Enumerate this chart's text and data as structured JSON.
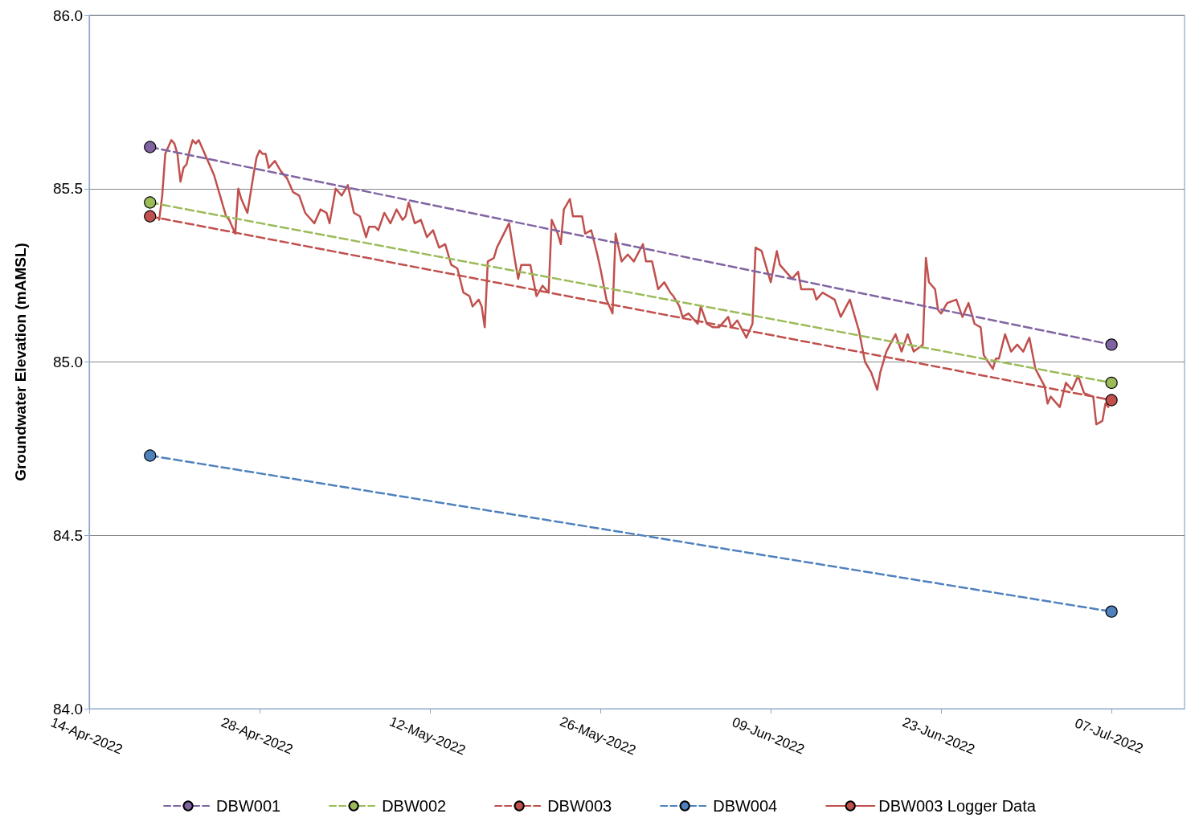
{
  "chart_data": {
    "type": "line",
    "ylabel": "Groundwater Elevation (mAMSL)",
    "ylim": [
      84,
      86
    ],
    "yticks": [
      {
        "value": 84,
        "label": "84.0"
      },
      {
        "value": 84.5,
        "label": "84.5"
      },
      {
        "value": 85,
        "label": "85.0"
      },
      {
        "value": 85.5,
        "label": "85.5"
      },
      {
        "value": 86,
        "label": "86.0"
      }
    ],
    "xlim": [
      "2022-04-14",
      "2022-07-13"
    ],
    "xticks": [
      {
        "value": "2022-04-14",
        "label": "14-Apr-2022"
      },
      {
        "value": "2022-04-28",
        "label": "28-Apr-2022"
      },
      {
        "value": "2022-05-12",
        "label": "12-May-2022"
      },
      {
        "value": "2022-05-26",
        "label": "26-May-2022"
      },
      {
        "value": "2022-06-09",
        "label": "09-Jun-2022"
      },
      {
        "value": "2022-06-23",
        "label": "23-Jun-2022"
      },
      {
        "value": "2022-07-07",
        "label": "07-Jul-2022"
      }
    ],
    "grid": "y",
    "legend": "bottom",
    "series": [
      {
        "name": "DBW001",
        "color": "#8064a2",
        "line_style": "dashed",
        "marker": "circle",
        "x": [
          "2022-04-19",
          "2022-07-07"
        ],
        "values": [
          85.62,
          85.05
        ]
      },
      {
        "name": "DBW002",
        "color": "#9bbb59",
        "line_style": "dashed",
        "marker": "circle",
        "x": [
          "2022-04-19",
          "2022-07-07"
        ],
        "values": [
          85.46,
          84.94
        ]
      },
      {
        "name": "DBW003",
        "color": "#c0504d",
        "line_style": "dashed",
        "marker": "circle",
        "x": [
          "2022-04-19",
          "2022-07-07"
        ],
        "values": [
          85.42,
          84.89
        ]
      },
      {
        "name": "DBW004",
        "color": "#4f81bd",
        "line_style": "dashed",
        "marker": "circle",
        "x": [
          "2022-04-19",
          "2022-07-07"
        ],
        "values": [
          84.73,
          84.28
        ]
      },
      {
        "name": "DBW003 Logger Data",
        "color": "#c0504d",
        "line_style": "solid",
        "marker": "none",
        "x": [
          "2022-04-19T18:00",
          "2022-04-20T00:00",
          "2022-04-20T06:00",
          "2022-04-20T18:00",
          "2022-04-21T00:00",
          "2022-04-21T06:00",
          "2022-04-21T12:00",
          "2022-04-21T18:00",
          "2022-04-22T00:00",
          "2022-04-22T06:00",
          "2022-04-22T12:00",
          "2022-04-22T18:00",
          "2022-04-23T00:00",
          "2022-04-23T06:00",
          "2022-04-23T18:00",
          "2022-04-24T06:00",
          "2022-04-24T18:00",
          "2022-04-25T00:00",
          "2022-04-25T06:00",
          "2022-04-25T12:00",
          "2022-04-26T00:00",
          "2022-04-26T06:00",
          "2022-04-26T12:00",
          "2022-04-27T00:00",
          "2022-04-27T12:00",
          "2022-04-27T18:00",
          "2022-04-28T00:00",
          "2022-04-28T06:00",
          "2022-04-28T12:00",
          "2022-04-28T18:00",
          "2022-04-29T06:00",
          "2022-04-29T18:00",
          "2022-04-30T06:00",
          "2022-04-30T18:00",
          "2022-05-01T06:00",
          "2022-05-01T18:00",
          "2022-05-02T12:00",
          "2022-05-03T00:00",
          "2022-05-03T12:00",
          "2022-05-03T18:00",
          "2022-05-04T06:00",
          "2022-05-04T18:00",
          "2022-05-05T06:00",
          "2022-05-05T18:00",
          "2022-05-06T06:00",
          "2022-05-06T18:00",
          "2022-05-07T00:00",
          "2022-05-07T12:00",
          "2022-05-07T18:00",
          "2022-05-08T06:00",
          "2022-05-08T18:00",
          "2022-05-09T06:00",
          "2022-05-09T18:00",
          "2022-05-10T00:00",
          "2022-05-10T06:00",
          "2022-05-10T18:00",
          "2022-05-11T06:00",
          "2022-05-11T18:00",
          "2022-05-12T06:00",
          "2022-05-12T18:00",
          "2022-05-13T06:00",
          "2022-05-13T18:00",
          "2022-05-14T06:00",
          "2022-05-14T18:00",
          "2022-05-15T06:00",
          "2022-05-15T12:00",
          "2022-05-16T00:00",
          "2022-05-16T06:00",
          "2022-05-16T12:00",
          "2022-05-16T18:00",
          "2022-05-17T06:00",
          "2022-05-17T12:00",
          "2022-05-18T12:00",
          "2022-05-19T00:00",
          "2022-05-19T06:00",
          "2022-05-19T12:00",
          "2022-05-20T06:00",
          "2022-05-20T18:00",
          "2022-05-21T06:00",
          "2022-05-21T18:00",
          "2022-05-22T00:00",
          "2022-05-22T06:00",
          "2022-05-22T12:00",
          "2022-05-22T18:00",
          "2022-05-23T00:00",
          "2022-05-23T12:00",
          "2022-05-23T18:00",
          "2022-05-24T12:00",
          "2022-05-24T18:00",
          "2022-05-25T06:00",
          "2022-05-25T18:00",
          "2022-05-26T00:00",
          "2022-05-26T12:00",
          "2022-05-27T00:00",
          "2022-05-27T06:00",
          "2022-05-27T18:00",
          "2022-05-28T06:00",
          "2022-05-28T18:00",
          "2022-05-29T12:00",
          "2022-05-29T18:00",
          "2022-05-30T06:00",
          "2022-05-30T18:00",
          "2022-05-31T06:00",
          "2022-05-31T18:00",
          "2022-06-01T00:00",
          "2022-06-01T12:00",
          "2022-06-01T18:00",
          "2022-06-02T06:00",
          "2022-06-03T00:00",
          "2022-06-03T06:00",
          "2022-06-03T18:00",
          "2022-06-04T06:00",
          "2022-06-04T18:00",
          "2022-06-05T12:00",
          "2022-06-05T18:00",
          "2022-06-06T06:00",
          "2022-06-07T00:00",
          "2022-06-07T12:00",
          "2022-06-07T18:00",
          "2022-06-08T06:00",
          "2022-06-08T18:00",
          "2022-06-09T00:00",
          "2022-06-09T12:00",
          "2022-06-09T18:00",
          "2022-06-10T18:00",
          "2022-06-11T06:00",
          "2022-06-11T12:00",
          "2022-06-12T12:00",
          "2022-06-12T18:00",
          "2022-06-13T06:00",
          "2022-06-14T06:00",
          "2022-06-14T18:00",
          "2022-06-15T12:00",
          "2022-06-16T06:00",
          "2022-06-16T18:00",
          "2022-06-17T06:00",
          "2022-06-17T18:00",
          "2022-06-18T00:00",
          "2022-06-18T12:00",
          "2022-06-19T06:00",
          "2022-06-19T18:00",
          "2022-06-20T06:00",
          "2022-06-20T18:00",
          "2022-06-21T12:00",
          "2022-06-21T18:00",
          "2022-06-22T00:00",
          "2022-06-22T12:00",
          "2022-06-22T18:00",
          "2022-06-23T00:00",
          "2022-06-23T12:00",
          "2022-06-24T06:00",
          "2022-06-24T18:00",
          "2022-06-25T06:00",
          "2022-06-25T18:00",
          "2022-06-26T06:00",
          "2022-06-26T12:00",
          "2022-06-27T06:00",
          "2022-06-27T12:00",
          "2022-06-27T18:00",
          "2022-06-28T06:00",
          "2022-06-28T18:00",
          "2022-06-29T06:00",
          "2022-06-29T18:00",
          "2022-06-30T06:00",
          "2022-06-30T18:00",
          "2022-07-01T12:00",
          "2022-07-01T18:00",
          "2022-07-02T00:00",
          "2022-07-02T18:00",
          "2022-07-03T06:00",
          "2022-07-03T18:00",
          "2022-07-04T06:00",
          "2022-07-04T18:00",
          "2022-07-05T12:00",
          "2022-07-05T18:00",
          "2022-07-06T06:00",
          "2022-07-06T12:00",
          "2022-07-06T18:00"
        ],
        "values": [
          85.41,
          85.48,
          85.6,
          85.64,
          85.63,
          85.6,
          85.52,
          85.56,
          85.57,
          85.61,
          85.64,
          85.63,
          85.64,
          85.62,
          85.58,
          85.54,
          85.48,
          85.45,
          85.42,
          85.41,
          85.37,
          85.5,
          85.47,
          85.43,
          85.54,
          85.59,
          85.61,
          85.6,
          85.6,
          85.56,
          85.58,
          85.55,
          85.53,
          85.49,
          85.48,
          85.43,
          85.4,
          85.44,
          85.43,
          85.4,
          85.5,
          85.48,
          85.51,
          85.43,
          85.42,
          85.36,
          85.39,
          85.39,
          85.38,
          85.43,
          85.4,
          85.44,
          85.41,
          85.42,
          85.46,
          85.4,
          85.41,
          85.36,
          85.38,
          85.33,
          85.34,
          85.28,
          85.27,
          85.2,
          85.19,
          85.16,
          85.18,
          85.16,
          85.1,
          85.29,
          85.3,
          85.33,
          85.4,
          85.29,
          85.24,
          85.28,
          85.28,
          85.19,
          85.22,
          85.2,
          85.41,
          85.39,
          85.37,
          85.34,
          85.44,
          85.47,
          85.42,
          85.42,
          85.37,
          85.38,
          85.31,
          85.27,
          85.18,
          85.14,
          85.37,
          85.29,
          85.31,
          85.29,
          85.34,
          85.29,
          85.29,
          85.21,
          85.23,
          85.2,
          85.19,
          85.16,
          85.13,
          85.14,
          85.11,
          85.16,
          85.11,
          85.1,
          85.1,
          85.13,
          85.1,
          85.12,
          85.07,
          85.11,
          85.33,
          85.32,
          85.26,
          85.23,
          85.32,
          85.28,
          85.24,
          85.26,
          85.21,
          85.21,
          85.18,
          85.2,
          85.18,
          85.13,
          85.18,
          85.09,
          85.0,
          84.97,
          84.92,
          84.97,
          85.03,
          85.08,
          85.03,
          85.08,
          85.03,
          85.05,
          85.3,
          85.23,
          85.21,
          85.15,
          85.14,
          85.17,
          85.18,
          85.13,
          85.17,
          85.11,
          85.1,
          85.02,
          84.98,
          85.01,
          85.01,
          85.08,
          85.03,
          85.05,
          85.03,
          85.07,
          84.98,
          84.93,
          84.88,
          84.9,
          84.87,
          84.94,
          84.92,
          84.96,
          84.91,
          84.9,
          84.82,
          84.83,
          84.88,
          84.87
        ]
      }
    ]
  }
}
